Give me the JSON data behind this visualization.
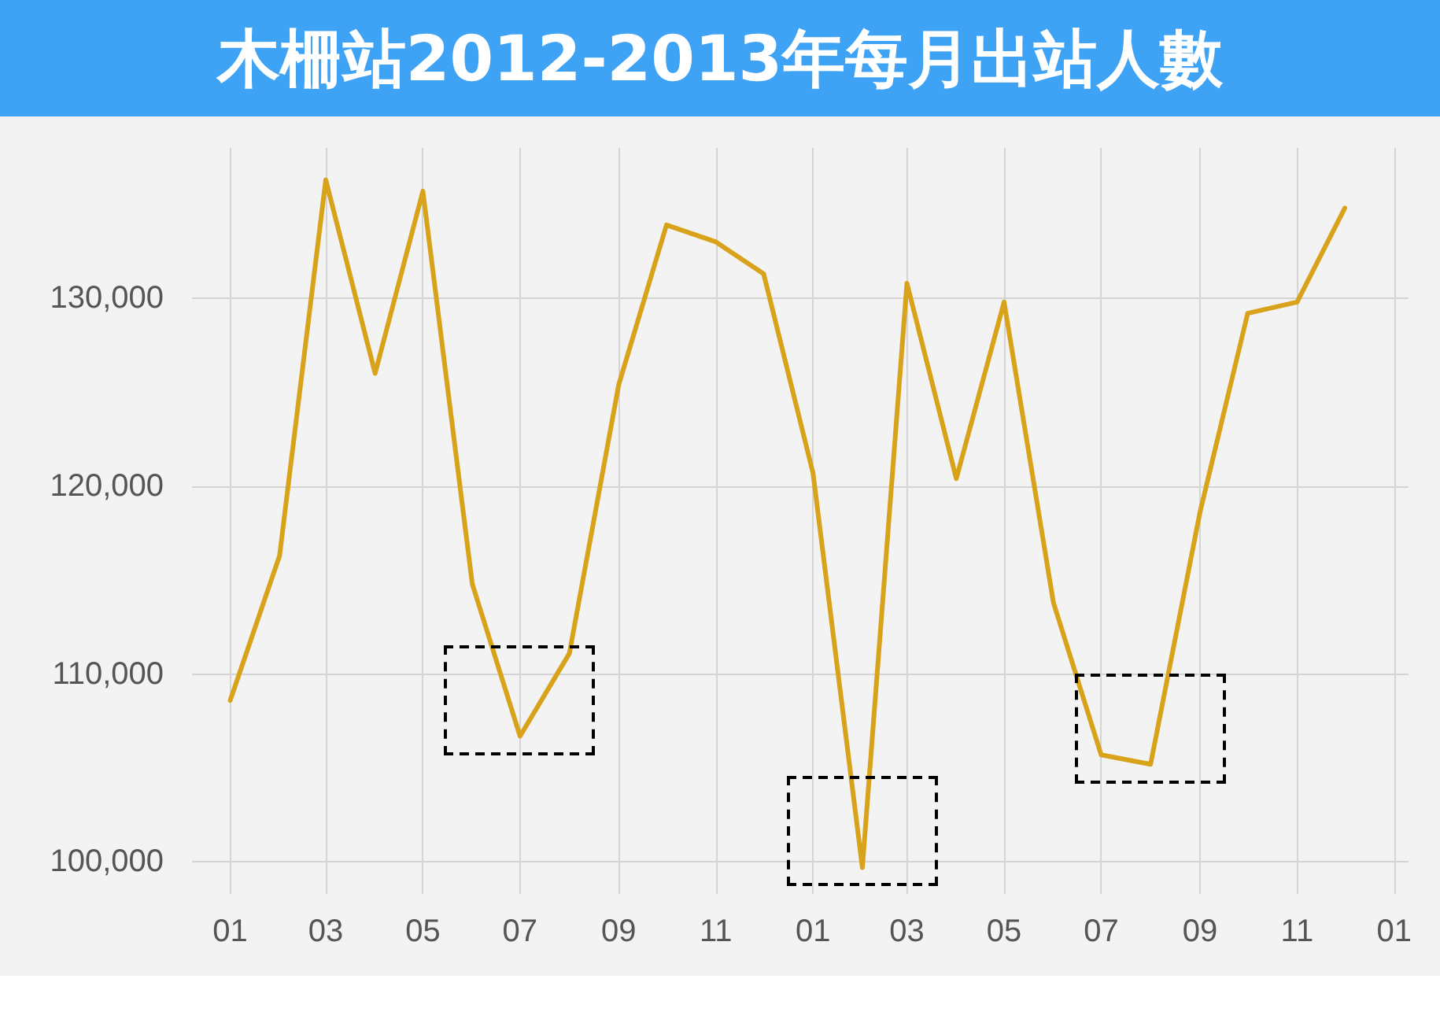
{
  "chart_data": {
    "type": "line",
    "title": "木柵站2012-2013年每月出站人數",
    "x": [
      "2012-01",
      "2012-02",
      "2012-03",
      "2012-04",
      "2012-05",
      "2012-06",
      "2012-07",
      "2012-08",
      "2012-09",
      "2012-10",
      "2012-11",
      "2012-12",
      "2013-01",
      "2013-02",
      "2013-03",
      "2013-04",
      "2013-05",
      "2013-06",
      "2013-07",
      "2013-08",
      "2013-09",
      "2013-10",
      "2013-11",
      "2013-12"
    ],
    "series": [
      {
        "color": "#d9a21b",
        "values": [
          108600,
          116300,
          136300,
          126000,
          135700,
          114800,
          106700,
          111100,
          125400,
          133900,
          133000,
          131300,
          120700,
          99700,
          130800,
          120400,
          129800,
          113800,
          105700,
          105200,
          118600,
          129200,
          129800,
          134800
        ]
      }
    ],
    "xlim": [
      "2011-12-08",
      "2014-01-10"
    ],
    "xticks": [
      {
        "value": "2012-01",
        "label": "01"
      },
      {
        "value": "2012-03",
        "label": "03"
      },
      {
        "value": "2012-05",
        "label": "05"
      },
      {
        "value": "2012-07",
        "label": "07"
      },
      {
        "value": "2012-09",
        "label": "09"
      },
      {
        "value": "2012-11",
        "label": "11"
      },
      {
        "value": "2013-01",
        "label": "01"
      },
      {
        "value": "2013-03",
        "label": "03"
      },
      {
        "value": "2013-05",
        "label": "05"
      },
      {
        "value": "2013-07",
        "label": "07"
      },
      {
        "value": "2013-09",
        "label": "09"
      },
      {
        "value": "2013-11",
        "label": "11"
      },
      {
        "value": "2014-01",
        "label": "01"
      }
    ],
    "ylim": [
      98300,
      138000
    ],
    "yticks": [
      {
        "value": 100000,
        "label": "100,000"
      },
      {
        "value": 110000,
        "label": "110,000"
      },
      {
        "value": 120000,
        "label": "120,000"
      },
      {
        "value": 130000,
        "label": "130,000"
      }
    ],
    "grid": true,
    "marker": "none",
    "line_style": "solid"
  }
}
